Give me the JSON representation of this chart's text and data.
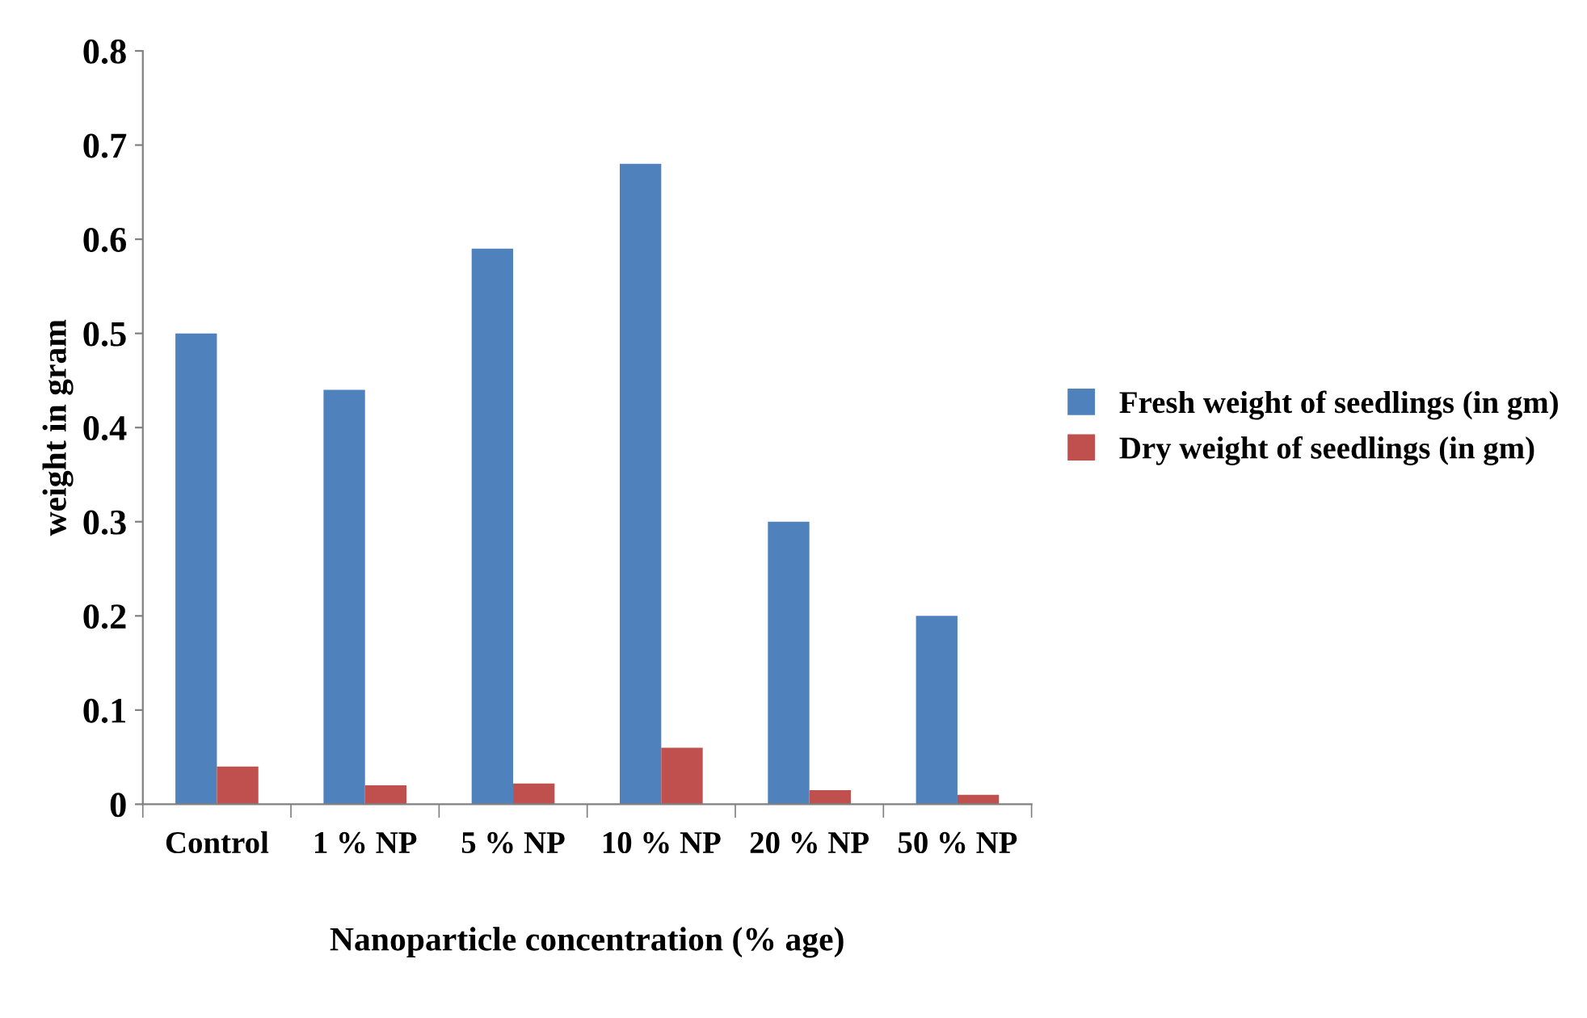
{
  "chart_data": {
    "type": "bar",
    "xlabel": "Nanoparticle concentration (% age)",
    "ylabel": "weight in gram",
    "categories": [
      "Control",
      "1 % NP",
      "5 % NP",
      "10 % NP",
      "20 % NP",
      "50 % NP"
    ],
    "series": [
      {
        "name": "Fresh weight of seedlings (in gm)",
        "color": "#4f81bd",
        "values": [
          0.5,
          0.44,
          0.59,
          0.68,
          0.3,
          0.2
        ]
      },
      {
        "name": "Dry weight of seedlings (in gm)",
        "color": "#c0504d",
        "values": [
          0.04,
          0.02,
          0.022,
          0.06,
          0.015,
          0.01
        ]
      }
    ],
    "ylim": [
      0,
      0.8
    ],
    "yticks": [
      0,
      0.1,
      0.2,
      0.3,
      0.4,
      0.5,
      0.6,
      0.7,
      0.8
    ],
    "grid": false,
    "legend": "right"
  }
}
